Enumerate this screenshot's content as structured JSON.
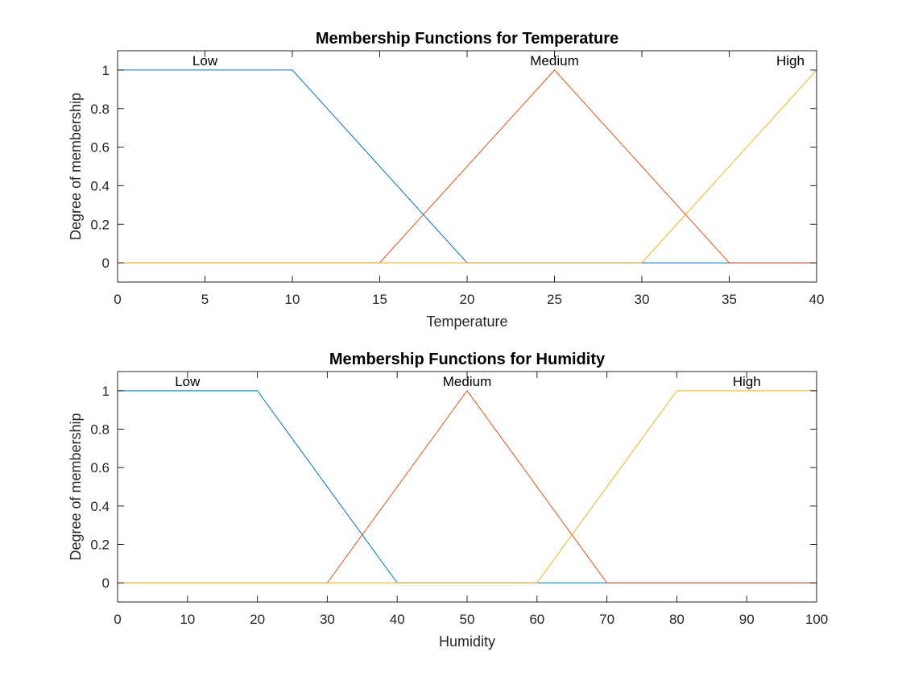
{
  "chart_data": [
    {
      "type": "line",
      "title": "Membership Functions for Temperature",
      "xlabel": "Temperature",
      "ylabel": "Degree of membership",
      "xlim": [
        0,
        40
      ],
      "ylim": [
        -0.1,
        1.1
      ],
      "xticks": [
        "0",
        "5",
        "10",
        "15",
        "20",
        "25",
        "30",
        "35",
        "40"
      ],
      "xtick_values": [
        0,
        5,
        10,
        15,
        20,
        25,
        30,
        35,
        40
      ],
      "yticks": [
        "0",
        "0.2",
        "0.4",
        "0.6",
        "0.8",
        "1"
      ],
      "ytick_values": [
        0,
        0.2,
        0.4,
        0.6,
        0.8,
        1
      ],
      "grid": false,
      "series": [
        {
          "label": "Low",
          "label_at": [
            5,
            1.0
          ],
          "color": "#0072BD",
          "x": [
            0,
            10,
            20,
            40
          ],
          "y": [
            1,
            1,
            0,
            0
          ]
        },
        {
          "label": "Medium",
          "label_at": [
            25,
            1.0
          ],
          "color": "#D95319",
          "x": [
            0,
            15,
            25,
            35,
            40
          ],
          "y": [
            0,
            0,
            1,
            0,
            0
          ]
        },
        {
          "label": "High",
          "label_at": [
            38.5,
            1.0
          ],
          "color": "#EDB120",
          "x": [
            0,
            30,
            40
          ],
          "y": [
            0,
            0,
            1
          ]
        }
      ]
    },
    {
      "type": "line",
      "title": "Membership Functions for Humidity",
      "xlabel": "Humidity",
      "ylabel": "Degree of membership",
      "xlim": [
        0,
        100
      ],
      "ylim": [
        -0.1,
        1.1
      ],
      "xticks": [
        "0",
        "10",
        "20",
        "30",
        "40",
        "50",
        "60",
        "70",
        "80",
        "90",
        "100"
      ],
      "xtick_values": [
        0,
        10,
        20,
        30,
        40,
        50,
        60,
        70,
        80,
        90,
        100
      ],
      "yticks": [
        "0",
        "0.2",
        "0.4",
        "0.6",
        "0.8",
        "1"
      ],
      "ytick_values": [
        0,
        0.2,
        0.4,
        0.6,
        0.8,
        1
      ],
      "grid": false,
      "series": [
        {
          "label": "Low",
          "label_at": [
            10,
            1.0
          ],
          "color": "#0072BD",
          "x": [
            0,
            20,
            40,
            100
          ],
          "y": [
            1,
            1,
            0,
            0
          ]
        },
        {
          "label": "Medium",
          "label_at": [
            50,
            1.0
          ],
          "color": "#D95319",
          "x": [
            0,
            30,
            50,
            70,
            100
          ],
          "y": [
            0,
            0,
            1,
            0,
            0
          ]
        },
        {
          "label": "High",
          "label_at": [
            90,
            1.0
          ],
          "color": "#EDB120",
          "x": [
            0,
            60,
            80,
            100
          ],
          "y": [
            0,
            0,
            1,
            1
          ]
        }
      ]
    }
  ]
}
